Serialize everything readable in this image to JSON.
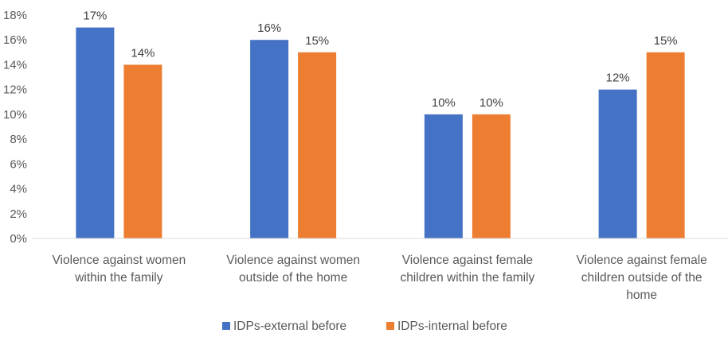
{
  "chart_data": {
    "type": "bar",
    "categories": [
      [
        "Violence against women",
        "within the family"
      ],
      [
        "Violence against women",
        "outside of the home"
      ],
      [
        "Violence against female",
        "children within the family"
      ],
      [
        "Violence against female",
        "children outside of the",
        "home"
      ]
    ],
    "series": [
      {
        "name": "IDPs-external before",
        "values": [
          17,
          16,
          10,
          12
        ],
        "labels": [
          "17%",
          "16%",
          "10%",
          "12%"
        ],
        "color": "#4472C4"
      },
      {
        "name": "IDPs-internal before",
        "values": [
          14,
          15,
          10,
          15
        ],
        "labels": [
          "14%",
          "15%",
          "10%",
          "15%"
        ],
        "color": "#ED7D31"
      }
    ],
    "yticks": [
      "0%",
      "2%",
      "4%",
      "6%",
      "8%",
      "10%",
      "12%",
      "14%",
      "16%",
      "18%"
    ],
    "ylim": [
      0,
      18
    ],
    "grid": false,
    "legend_position": "bottom"
  }
}
